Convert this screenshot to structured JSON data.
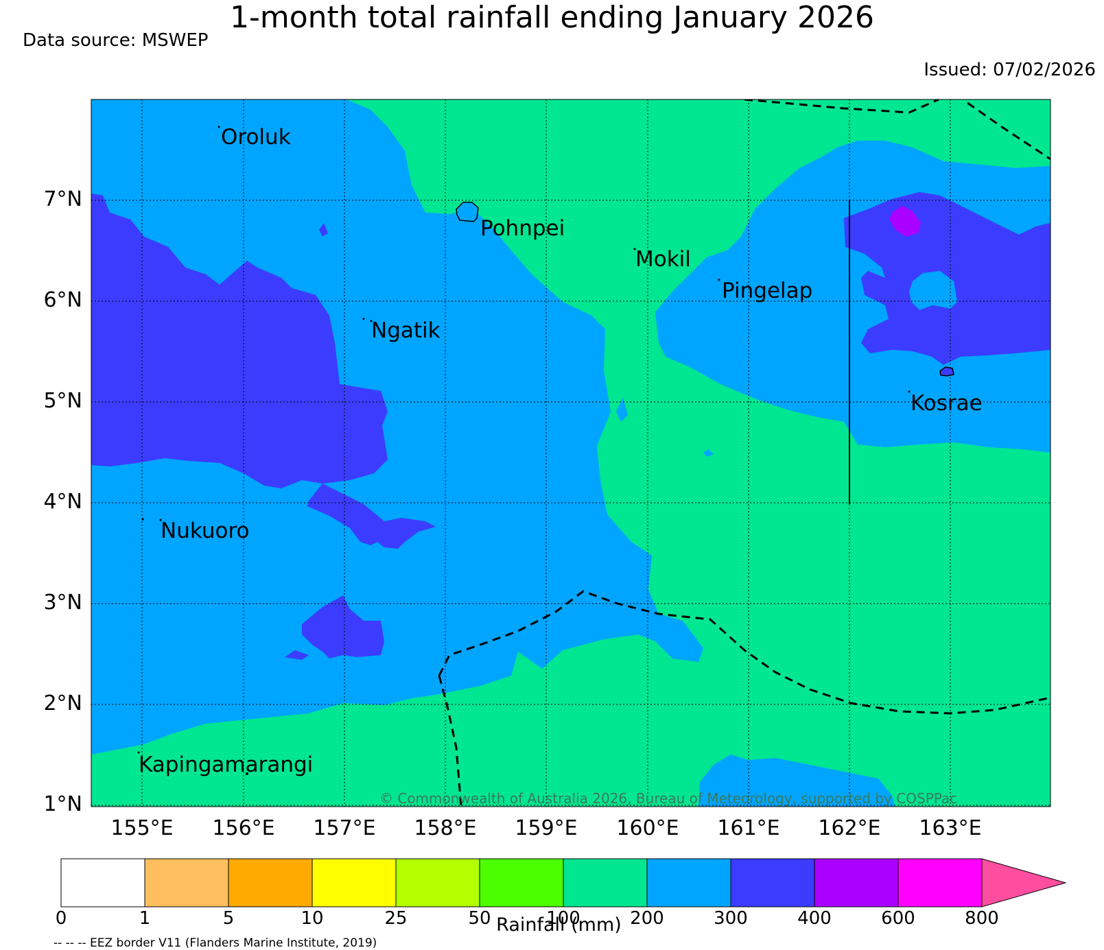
{
  "title": "1-month total rainfall ending January 2026",
  "data_source": "Data source: MSWEP",
  "issued": "Issued: 07/02/2026",
  "copyright": "© Commonwealth of Australia 2026, Bureau of Meteorology, supported by COSPPac",
  "eez_note": "-- -- -- EEZ border V11 (Flanders Marine Institute, 2019)",
  "map": {
    "lon_range": [
      154.5,
      164.0
    ],
    "lat_range": [
      1.0,
      8.0
    ],
    "lat_labels": [
      "7°N",
      "6°N",
      "5°N",
      "4°N",
      "3°N",
      "2°N",
      "1°N"
    ],
    "lon_labels": [
      "155°E",
      "156°E",
      "157°E",
      "158°E",
      "159°E",
      "160°E",
      "161°E",
      "162°E",
      "163°E"
    ],
    "places": [
      {
        "name": "Oroluk"
      },
      {
        "name": "Pohnpei"
      },
      {
        "name": "Mokil"
      },
      {
        "name": "Pingelap"
      },
      {
        "name": "Ngatik"
      },
      {
        "name": "Kosrae"
      },
      {
        "name": "Nukuoro"
      },
      {
        "name": "Kapingamarangi"
      }
    ]
  },
  "colorbar": {
    "label": "Rainfall (mm)",
    "ticks": [
      "0",
      "1",
      "5",
      "10",
      "25",
      "50",
      "100",
      "200",
      "300",
      "400",
      "600",
      "800"
    ],
    "colors": [
      "#ffffff",
      "#ffbf5f",
      "#ffaa00",
      "#ffff00",
      "#b3ff00",
      "#4cff00",
      "#00e691",
      "#00a5ff",
      "#3c3cff",
      "#aa00ff",
      "#ff00ff",
      "#ff4e9f"
    ]
  }
}
